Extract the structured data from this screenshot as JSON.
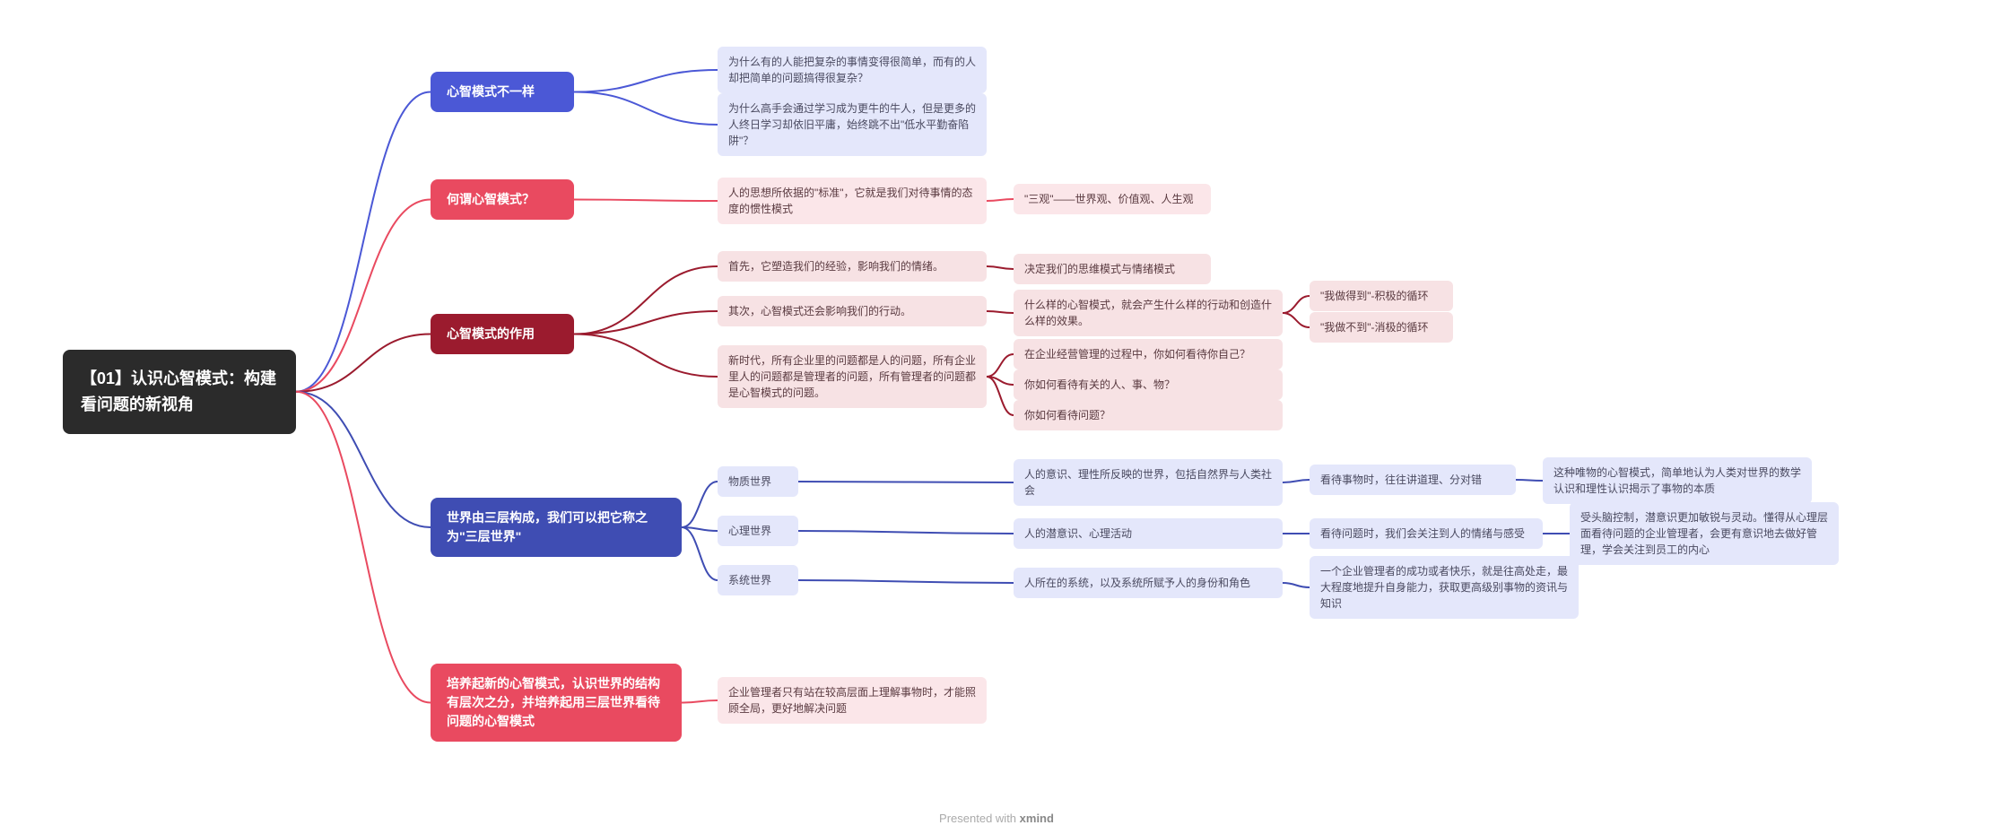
{
  "colors": {
    "root_bg": "#2b2b2b",
    "root_fg": "#ffffff",
    "b1_bg": "#4b58d6",
    "b1_leaf_bg": "#e4e7fb",
    "b1_leaf_fg": "#4a4a60",
    "b1_line": "#4b58d6",
    "b2_bg": "#e94a60",
    "b2_leaf_bg": "#fbe6e9",
    "b2_leaf_fg": "#5a3a40",
    "b2_line": "#e94a60",
    "b3_bg": "#9b1b2e",
    "b3_leaf_bg": "#f7e2e4",
    "b3_leaf_fg": "#5a3a40",
    "b3_line": "#9b1b2e",
    "b4_bg": "#3f4db3",
    "b4_leaf_bg": "#e4e7fb",
    "b4_leaf_fg": "#4a4a60",
    "b4_line": "#3f4db3",
    "b5_bg": "#e94a60",
    "b5_leaf_bg": "#fbe6e9",
    "b5_leaf_fg": "#5a3a40",
    "b5_line": "#e94a60"
  },
  "root": "【01】认识心智模式：构建看问题的新视角",
  "branches": {
    "b1": {
      "label": "心智模式不一样",
      "children": [
        "为什么有的人能把复杂的事情变得很简单，而有的人却把简单的问题搞得很复杂？",
        "为什么高手会通过学习成为更牛的牛人，但是更多的人终日学习却依旧平庸，始终跳不出\"低水平勤奋陷阱\"？"
      ]
    },
    "b2": {
      "label": "何谓心智模式？",
      "c1": "人的思想所依据的\"标准\"，它就是我们对待事情的态度的惯性模式",
      "c1a": "\"三观\"——世界观、价值观、人生观"
    },
    "b3": {
      "label": "心智模式的作用",
      "c1": "首先，它塑造我们的经验，影响我们的情绪。",
      "c1a": "决定我们的思维模式与情绪模式",
      "c2": "其次，心智模式还会影响我们的行动。",
      "c2a": "什么样的心智模式，就会产生什么样的行动和创造什么样的效果。",
      "c2a1": "\"我做得到\"-积极的循环",
      "c2a2": "\"我做不到\"-消极的循环",
      "c3": "新时代，所有企业里的问题都是人的问题，所有企业里人的问题都是管理者的问题，所有管理者的问题都是心智模式的问题。",
      "c3a": "在企业经营管理的过程中，你如何看待你自己？",
      "c3b": "你如何看待有关的人、事、物？",
      "c3c": "你如何看待问题？"
    },
    "b4": {
      "label": "世界由三层构成，我们可以把它称之为\"三层世界\"",
      "c1": "物质世界",
      "c1a": "人的意识、理性所反映的世界，包括自然界与人类社会",
      "c1b": "看待事物时，往往讲道理、分对错",
      "c1c": "这种唯物的心智模式，简单地认为人类对世界的数学认识和理性认识揭示了事物的本质",
      "c2": "心理世界",
      "c2a": "人的潜意识、心理活动",
      "c2b": "看待问题时，我们会关注到人的情绪与感受",
      "c2c": "受头脑控制，潜意识更加敏锐与灵动。懂得从心理层面看待问题的企业管理者，会更有意识地去做好管理，学会关注到员工的内心",
      "c3": "系统世界",
      "c3a": "人所在的系统，以及系统所赋予人的身份和角色",
      "c3b": "一个企业管理者的成功或者快乐，就是往高处走，最大程度地提升自身能力，获取更高级别事物的资讯与知识"
    },
    "b5": {
      "label": "培养起新的心智模式，认识世界的结构有层次之分，并培养起用三层世界看待问题的心智模式",
      "c1": "企业管理者只有站在较高层面上理解事物时，才能照顾全局，更好地解决问题"
    }
  },
  "footer_prefix": "Presented with ",
  "footer_brand": "xmind"
}
